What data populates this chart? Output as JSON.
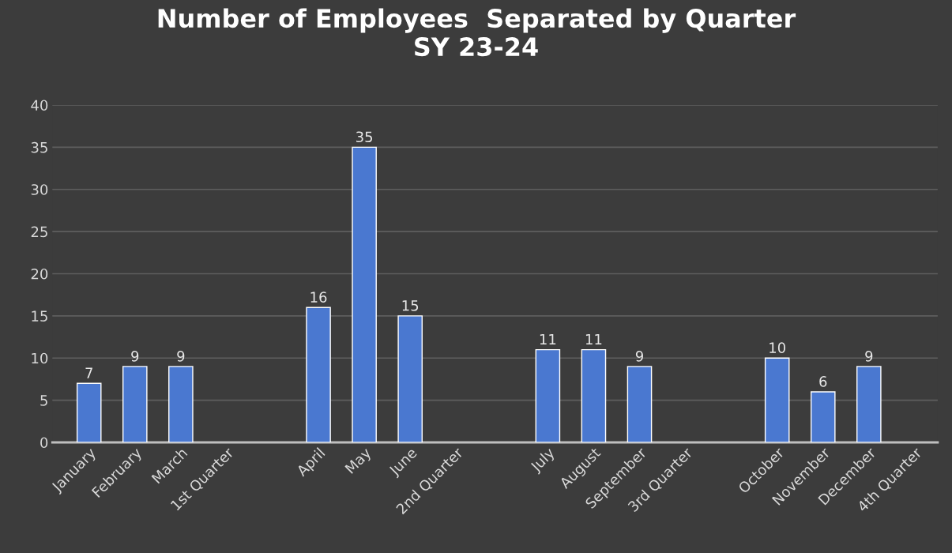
{
  "chart_data": {
    "type": "bar",
    "title": "Number of Employees  Separated by Quarter\nSY 23-24",
    "categories": [
      "January",
      "February",
      "March",
      "1st Quarter",
      null,
      "April",
      "May",
      "June",
      "2nd Quarter",
      null,
      "July",
      "August",
      "September",
      "3rd Quarter",
      null,
      "October",
      "November",
      "December",
      "4th Quarter"
    ],
    "values": [
      7,
      9,
      9,
      null,
      null,
      16,
      35,
      15,
      null,
      null,
      11,
      11,
      9,
      null,
      null,
      10,
      6,
      9,
      null
    ],
    "color": "#4a78d0",
    "ylim": [
      0,
      40
    ],
    "yticks": [
      0,
      5,
      10,
      15,
      20,
      25,
      30,
      35,
      40
    ],
    "grid": "y",
    "data_labels": true
  }
}
